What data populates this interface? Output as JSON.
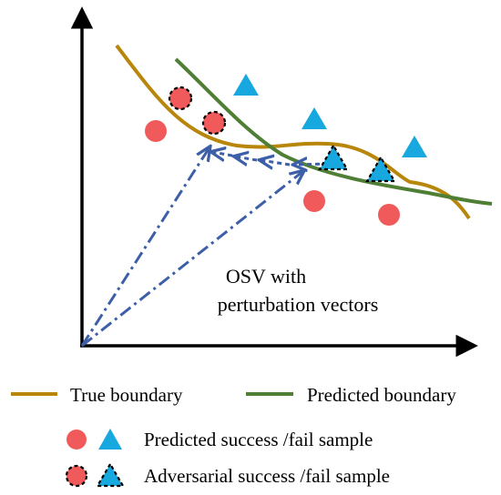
{
  "annotation": {
    "line1": "OSV with",
    "line2": "perturbation vectors"
  },
  "legend": {
    "true_boundary": "True boundary",
    "predicted_boundary": "Predicted boundary",
    "predicted_samples": "Predicted success /fail sample",
    "adversarial_samples": "Adversarial success /fail sample"
  },
  "colors": {
    "true_boundary": "#b8860b",
    "predicted_boundary": "#4f7f35",
    "success": "#f15a5a",
    "fail": "#17a8df",
    "vector": "#3d5fa8",
    "axis": "#000000"
  },
  "icons": {
    "success_marker": "circle-icon",
    "fail_marker": "triangle-icon",
    "adversarial_outline": "dashed-outline"
  }
}
